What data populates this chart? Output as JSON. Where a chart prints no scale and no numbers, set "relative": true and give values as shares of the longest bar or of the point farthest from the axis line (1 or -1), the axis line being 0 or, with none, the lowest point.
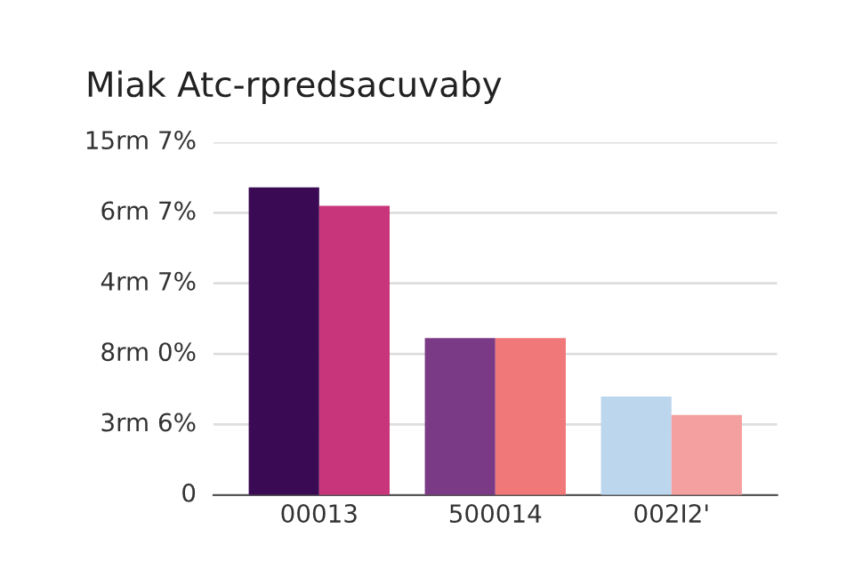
{
  "chart_data": {
    "type": "bar",
    "title": "Miak Atc-rpredsacuvaby",
    "categories": [
      "00013",
      "500014",
      "002I2'"
    ],
    "series": [
      {
        "colors": [
          "#3a0a55",
          "#7a3a85",
          "#bcd6ee"
        ],
        "values": [
          1,
          0.51,
          0.32
        ]
      },
      {
        "colors": [
          "#c8357a",
          "#f07878",
          "#f5a0a0"
        ],
        "values": [
          0.94,
          0.51,
          0.26
        ]
      }
    ],
    "relative": true,
    "annotations": [
      "0",
      "3rm 6%",
      "8rm 0%",
      "4rm 7%",
      "6rm 7%",
      "15rm 7%"
    ],
    "grid": "y",
    "legend": false
  }
}
